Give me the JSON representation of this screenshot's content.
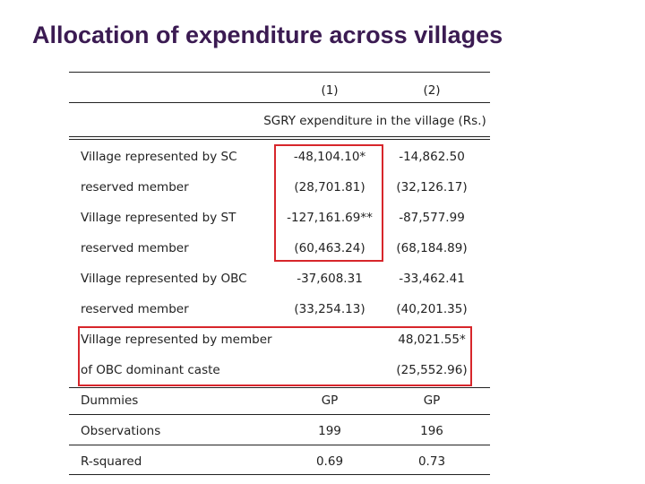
{
  "slide": {
    "title": "Allocation of expenditure across villages"
  },
  "table": {
    "col_headers": [
      "(1)",
      "(2)"
    ],
    "dependent_variable": "SGRY expenditure in the village (Rs.)",
    "rows": [
      {
        "label": "Village represented by SC",
        "c1": "-48,104.10*",
        "c2": "-14,862.50"
      },
      {
        "label": "reserved member",
        "c1": "(28,701.81)",
        "c2": "(32,126.17)"
      },
      {
        "label": "Village represented by ST",
        "c1": "-127,161.69**",
        "c2": "-87,577.99"
      },
      {
        "label": "reserved member",
        "c1": "(60,463.24)",
        "c2": "(68,184.89)"
      },
      {
        "label": "Village represented by OBC",
        "c1": "-37,608.31",
        "c2": "-33,462.41"
      },
      {
        "label": "reserved member",
        "c1": "(33,254.13)",
        "c2": "(40,201.35)"
      },
      {
        "label": "Village represented by member",
        "c1": "",
        "c2": "48,021.55*"
      },
      {
        "label": "of OBC dominant caste",
        "c1": "",
        "c2": "(25,552.96)"
      }
    ],
    "footer_rows": [
      {
        "label": "Dummies",
        "c1": "GP",
        "c2": "GP"
      },
      {
        "label": "Observations",
        "c1": "199",
        "c2": "196"
      },
      {
        "label": "R-squared",
        "c1": "0.69",
        "c2": "0.73"
      }
    ]
  },
  "highlight_color": "#d7262b"
}
